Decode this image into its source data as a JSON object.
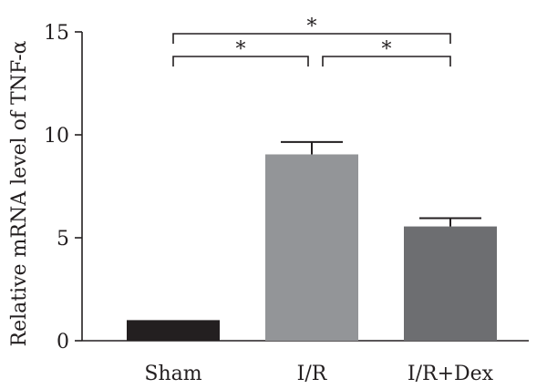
{
  "chart_data": {
    "type": "bar",
    "categories": [
      "Sham",
      "I/R",
      "I/R+Dex"
    ],
    "values": [
      1.0,
      9.05,
      5.55
    ],
    "errors": [
      0,
      0.6,
      0.4
    ],
    "colors": [
      "#231f20",
      "#939598",
      "#6d6e71"
    ],
    "title": "",
    "xlabel": "",
    "ylabel": "Relative mRNA level of TNF-α",
    "ylim": [
      0,
      15
    ],
    "yticks": [
      0,
      5,
      10,
      15
    ],
    "grid": false,
    "significance": [
      {
        "from": 0,
        "to": 2,
        "label": "*"
      },
      {
        "from": 0,
        "to": 1,
        "label": "*"
      },
      {
        "from": 1,
        "to": 2,
        "label": "*"
      }
    ]
  }
}
